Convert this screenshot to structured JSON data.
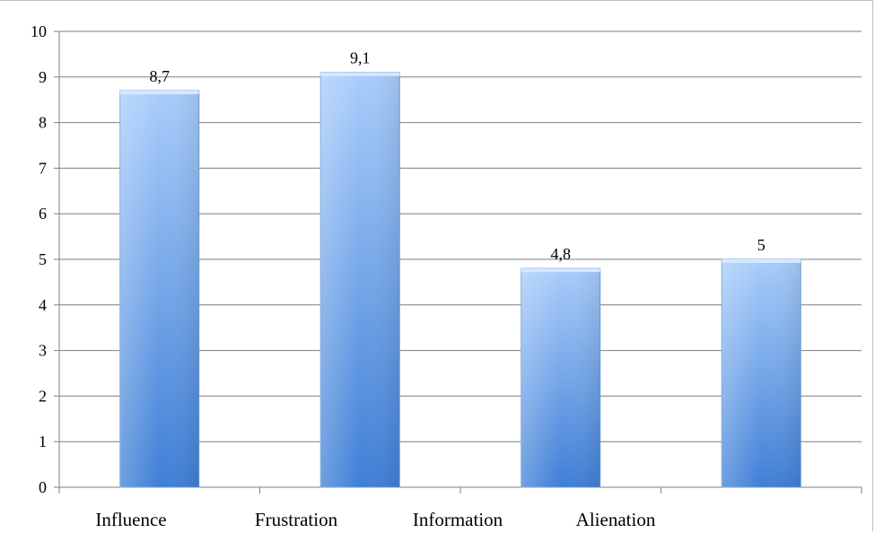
{
  "chart_data": {
    "type": "bar",
    "categories": [
      "Influence",
      "Frustration",
      "Information",
      "Alienation"
    ],
    "values": [
      8.7,
      9.1,
      4.8,
      5
    ],
    "data_labels": [
      "8,7",
      "9,1",
      "4,8",
      "5"
    ],
    "axis_categories": [
      "Influence",
      "Frustration",
      "Information",
      "Alienation",
      ""
    ],
    "title": "",
    "xlabel": "",
    "ylabel": "",
    "ylim": [
      0,
      10
    ],
    "yticks": [
      "0",
      "1",
      "2",
      "3",
      "4",
      "5",
      "6",
      "7",
      "8",
      "9",
      "10"
    ],
    "grid": true,
    "legend": "none",
    "colors": {
      "bar_top": "#a9cdfb",
      "bar_bottom": "#3f7fd6",
      "bar_edge": "#6f9fdc",
      "gridline": "#7f7f7f",
      "axis": "#7f7f7f"
    }
  }
}
